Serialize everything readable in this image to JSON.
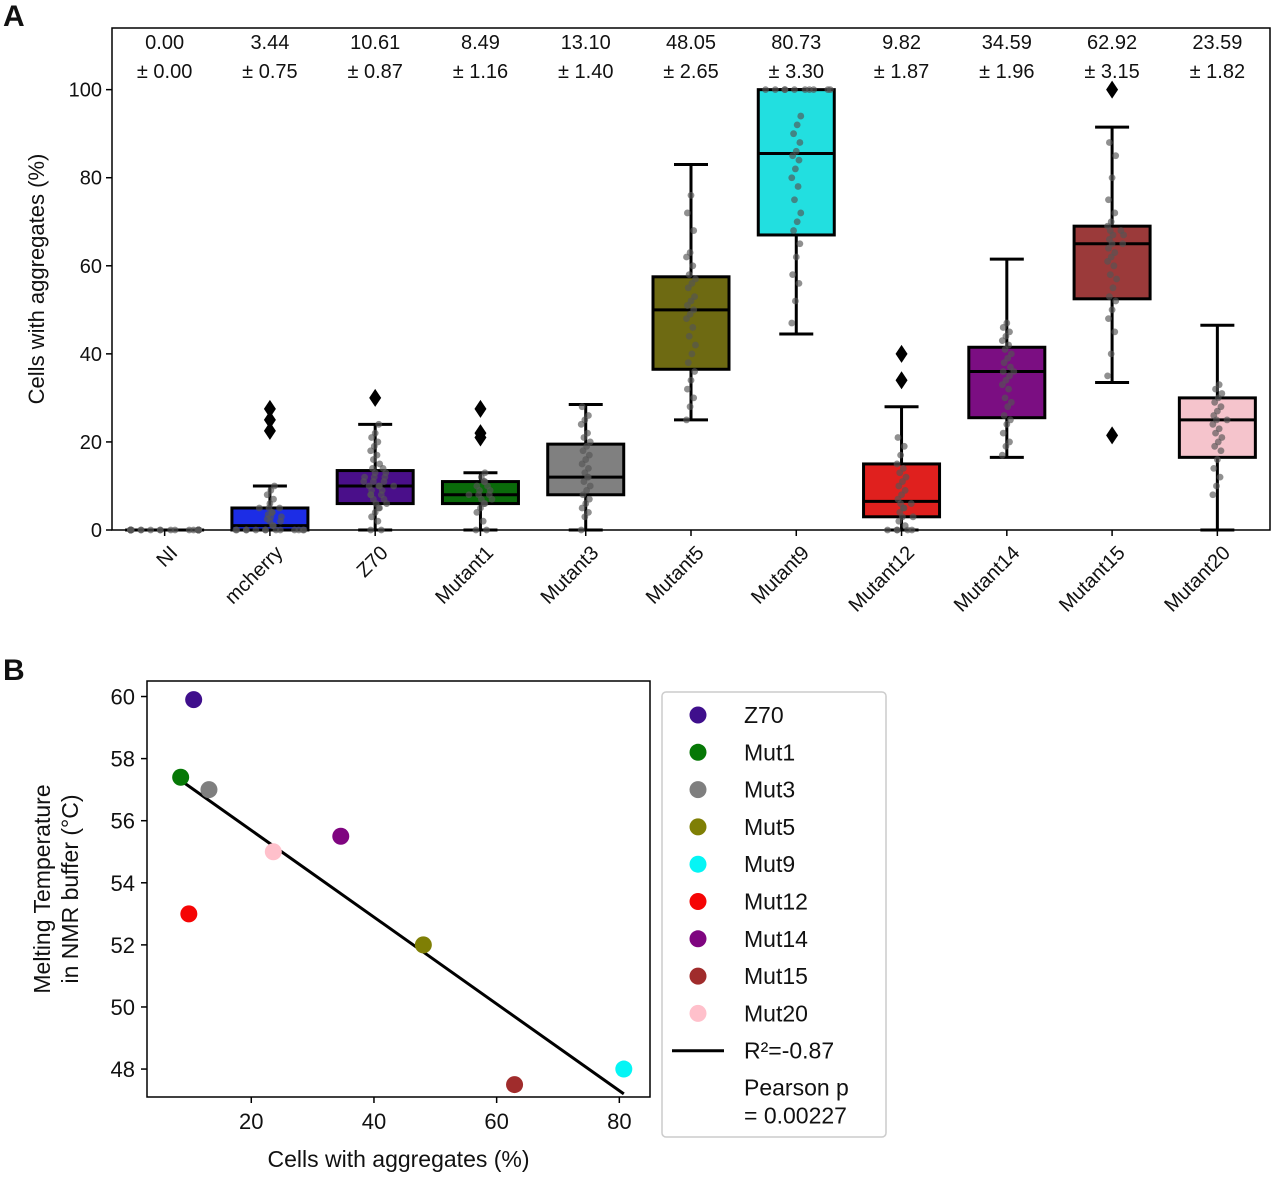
{
  "chart_data": [
    {
      "panel_label": "A",
      "type": "box",
      "ylabel": "Cells with aggregates (%)",
      "xlabel": "",
      "ylim": [
        0,
        114
      ],
      "yticks": [
        0,
        20,
        40,
        60,
        80,
        100
      ],
      "grid": false,
      "categories": [
        "NI",
        "mcherry",
        "Z70",
        "Mutant1",
        "Mutant3",
        "Mutant5",
        "Mutant9",
        "Mutant12",
        "Mutant14",
        "Mutant15",
        "Mutant20"
      ],
      "mean_labels": [
        "0.00",
        "3.44",
        "10.61",
        "8.49",
        "13.10",
        "48.05",
        "80.73",
        "9.82",
        "34.59",
        "62.92",
        "23.59"
      ],
      "sem_labels": [
        "± 0.00",
        "± 0.75",
        "± 0.87",
        "± 1.16",
        "± 1.40",
        "± 2.65",
        "± 3.30",
        "± 1.87",
        "± 1.96",
        "± 3.15",
        "± 1.82"
      ],
      "boxes": [
        {
          "name": "NI",
          "color": "#ffffff",
          "min": 0,
          "q1": 0,
          "median": 0,
          "q3": 0,
          "max": 0,
          "outliers": [],
          "points": [
            0,
            0,
            0,
            0,
            0,
            0,
            0,
            0,
            0,
            0,
            0,
            0,
            0,
            0,
            0,
            0,
            0,
            0,
            0,
            0,
            0,
            0,
            0,
            0,
            0,
            0,
            0,
            0,
            0,
            0
          ]
        },
        {
          "name": "mcherry",
          "color": "#1c2de6",
          "min": 0,
          "q1": 0,
          "median": 1,
          "q3": 5,
          "max": 10,
          "outliers": [
            22.5,
            25,
            27.5
          ],
          "points": [
            0,
            0,
            0,
            0,
            0,
            0,
            0,
            0,
            0,
            0,
            0,
            0,
            0,
            1,
            1,
            2,
            2,
            2.5,
            3,
            3,
            3.5,
            4,
            4,
            5,
            5,
            5,
            6,
            7,
            8,
            9,
            10
          ]
        },
        {
          "name": "Z70",
          "color": "#4a0f8a",
          "min": 0,
          "q1": 6,
          "median": 10,
          "q3": 13.5,
          "max": 24,
          "outliers": [
            30
          ],
          "points": [
            0,
            0,
            2,
            3,
            4,
            5,
            5,
            6,
            6,
            7,
            7,
            8,
            8,
            8,
            9,
            9,
            10,
            10,
            10,
            10,
            11,
            11,
            11,
            12,
            12,
            12,
            13,
            13,
            14,
            14,
            15,
            16,
            17,
            18,
            19,
            20,
            21,
            22,
            24
          ]
        },
        {
          "name": "Mutant1",
          "color": "#0a6b0a",
          "min": 0,
          "q1": 6,
          "median": 8,
          "q3": 11,
          "max": 13,
          "outliers": [
            21,
            22,
            27.5
          ],
          "points": [
            0,
            0,
            2,
            4,
            5,
            6,
            6,
            7,
            7,
            8,
            8,
            8,
            9,
            9,
            10,
            10,
            11,
            11,
            12,
            13
          ]
        },
        {
          "name": "Mutant3",
          "color": "#808080",
          "min": 0,
          "q1": 8,
          "median": 12,
          "q3": 19.5,
          "max": 28.5,
          "outliers": [],
          "points": [
            0,
            3,
            4,
            5,
            6,
            7,
            8,
            9,
            10,
            11,
            12,
            12,
            13,
            14,
            15,
            16,
            17,
            18,
            19,
            20,
            21,
            22,
            24,
            25,
            26,
            28
          ]
        },
        {
          "name": "Mutant5",
          "color": "#6e6a12",
          "min": 25,
          "q1": 36.5,
          "median": 50,
          "q3": 57.5,
          "max": 83,
          "outliers": [],
          "points": [
            25,
            28,
            30,
            32,
            34,
            36,
            38,
            40,
            42,
            44,
            46,
            48,
            49,
            50,
            51,
            52,
            53,
            55,
            56,
            57,
            58,
            60,
            62,
            63,
            68,
            72,
            76
          ]
        },
        {
          "name": "Mutant9",
          "color": "#22dfe0",
          "min": 44.5,
          "q1": 67,
          "median": 85.5,
          "q3": 100,
          "max": 100,
          "outliers": [],
          "points": [
            47,
            52,
            56,
            58,
            62,
            65,
            68,
            70,
            72,
            75,
            78,
            80,
            82,
            84,
            85,
            86,
            88,
            90,
            92,
            94,
            100,
            100,
            100,
            100,
            100,
            100,
            100,
            100,
            100,
            100
          ]
        },
        {
          "name": "Mutant12",
          "color": "#e0201e",
          "min": 0,
          "q1": 3,
          "median": 6.5,
          "q3": 15,
          "max": 28,
          "outliers": [
            34,
            40
          ],
          "points": [
            0,
            0,
            0,
            0,
            0,
            1,
            2,
            3,
            3,
            4,
            5,
            5,
            6,
            6,
            7,
            8,
            9,
            10,
            11,
            12,
            13,
            14,
            15,
            17,
            19,
            21
          ]
        },
        {
          "name": "Mutant14",
          "color": "#7b0e82",
          "min": 16.5,
          "q1": 25.5,
          "median": 36,
          "q3": 41.5,
          "max": 61.5,
          "outliers": [],
          "points": [
            17,
            19,
            20,
            22,
            24,
            25,
            26,
            28,
            29,
            30,
            32,
            33,
            34,
            35,
            36,
            36,
            37,
            38,
            39,
            40,
            41,
            42,
            43,
            44,
            45,
            46,
            47
          ]
        },
        {
          "name": "Mutant15",
          "color": "#9b3a3a",
          "min": 33.5,
          "q1": 52.5,
          "median": 65,
          "q3": 69,
          "max": 91.5,
          "outliers": [
            21.5,
            100
          ],
          "points": [
            35,
            40,
            45,
            48,
            50,
            52,
            53,
            55,
            57,
            58,
            60,
            61,
            62,
            63,
            64,
            65,
            65,
            66,
            67,
            67,
            68,
            68,
            69,
            70,
            72,
            75,
            80,
            85,
            88
          ]
        },
        {
          "name": "Mutant20",
          "color": "#f5c4cc",
          "min": 0,
          "q1": 16.5,
          "median": 25,
          "q3": 30,
          "max": 46.5,
          "outliers": [],
          "points": [
            8,
            10,
            12,
            14,
            16,
            18,
            19,
            20,
            21,
            22,
            23,
            24,
            25,
            25,
            26,
            27,
            28,
            29,
            30,
            31,
            32,
            33
          ]
        }
      ]
    },
    {
      "panel_label": "B",
      "type": "scatter",
      "xlabel": "Cells with aggregates (%)",
      "ylabel_lines": [
        "Melting Temperature",
        "in NMR buffer (°C)"
      ],
      "xlim": [
        3,
        85
      ],
      "ylim": [
        47.1,
        60.5
      ],
      "xticks": [
        20,
        40,
        60,
        80
      ],
      "yticks": [
        48,
        50,
        52,
        54,
        56,
        58,
        60
      ],
      "grid": false,
      "legend_position": "outside-right",
      "points": [
        {
          "name": "Z70",
          "x": 10.61,
          "y": 59.9,
          "color": "#3f0f8c"
        },
        {
          "name": "Mut1",
          "x": 8.49,
          "y": 57.4,
          "color": "#067806"
        },
        {
          "name": "Mut3",
          "x": 13.1,
          "y": 57.0,
          "color": "#7f7f7f"
        },
        {
          "name": "Mut5",
          "x": 48.05,
          "y": 52.0,
          "color": "#7f7f05"
        },
        {
          "name": "Mut9",
          "x": 80.73,
          "y": 48.0,
          "color": "#05f5f5"
        },
        {
          "name": "Mut12",
          "x": 9.82,
          "y": 53.0,
          "color": "#f50505"
        },
        {
          "name": "Mut14",
          "x": 34.59,
          "y": 55.5,
          "color": "#7f0580"
        },
        {
          "name": "Mut15",
          "x": 62.92,
          "y": 47.5,
          "color": "#a02c2c"
        },
        {
          "name": "Mut20",
          "x": 23.59,
          "y": 55.0,
          "color": "#ffc0cb"
        }
      ],
      "fit_line": {
        "x": [
          8.49,
          80.73
        ],
        "y": [
          57.3,
          47.2
        ],
        "label": "R²=-0.87",
        "color": "#000000"
      },
      "annotation": [
        "Pearson p",
        "= 0.00227"
      ]
    }
  ]
}
